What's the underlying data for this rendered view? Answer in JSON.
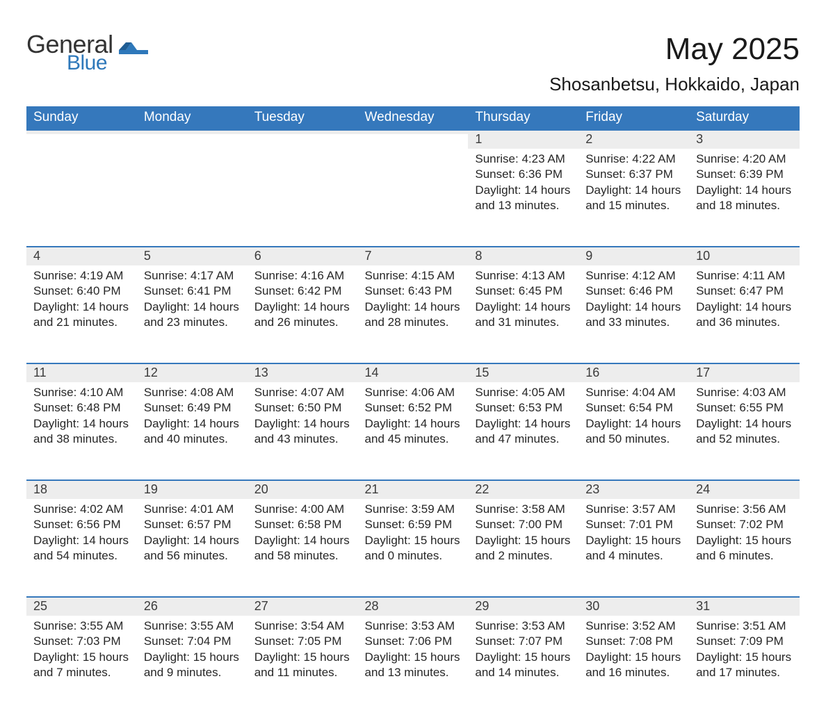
{
  "logo": {
    "general": "General",
    "blue": "Blue",
    "accent": "#2e78ba"
  },
  "title": "May 2025",
  "location": "Shosanbetsu, Hokkaido, Japan",
  "colors": {
    "header_bg": "#3578bc",
    "header_text": "#ffffff",
    "daynum_bg": "#ededed",
    "daynum_border": "#3578bc",
    "body_text": "#262626",
    "page_bg": "#ffffff"
  },
  "weekdays": [
    "Sunday",
    "Monday",
    "Tuesday",
    "Wednesday",
    "Thursday",
    "Friday",
    "Saturday"
  ],
  "weeks": [
    [
      null,
      null,
      null,
      null,
      {
        "n": "1",
        "sr": "4:23 AM",
        "ss": "6:36 PM",
        "dh": "14",
        "dm": "13"
      },
      {
        "n": "2",
        "sr": "4:22 AM",
        "ss": "6:37 PM",
        "dh": "14",
        "dm": "15"
      },
      {
        "n": "3",
        "sr": "4:20 AM",
        "ss": "6:39 PM",
        "dh": "14",
        "dm": "18"
      }
    ],
    [
      {
        "n": "4",
        "sr": "4:19 AM",
        "ss": "6:40 PM",
        "dh": "14",
        "dm": "21"
      },
      {
        "n": "5",
        "sr": "4:17 AM",
        "ss": "6:41 PM",
        "dh": "14",
        "dm": "23"
      },
      {
        "n": "6",
        "sr": "4:16 AM",
        "ss": "6:42 PM",
        "dh": "14",
        "dm": "26"
      },
      {
        "n": "7",
        "sr": "4:15 AM",
        "ss": "6:43 PM",
        "dh": "14",
        "dm": "28"
      },
      {
        "n": "8",
        "sr": "4:13 AM",
        "ss": "6:45 PM",
        "dh": "14",
        "dm": "31"
      },
      {
        "n": "9",
        "sr": "4:12 AM",
        "ss": "6:46 PM",
        "dh": "14",
        "dm": "33"
      },
      {
        "n": "10",
        "sr": "4:11 AM",
        "ss": "6:47 PM",
        "dh": "14",
        "dm": "36"
      }
    ],
    [
      {
        "n": "11",
        "sr": "4:10 AM",
        "ss": "6:48 PM",
        "dh": "14",
        "dm": "38"
      },
      {
        "n": "12",
        "sr": "4:08 AM",
        "ss": "6:49 PM",
        "dh": "14",
        "dm": "40"
      },
      {
        "n": "13",
        "sr": "4:07 AM",
        "ss": "6:50 PM",
        "dh": "14",
        "dm": "43"
      },
      {
        "n": "14",
        "sr": "4:06 AM",
        "ss": "6:52 PM",
        "dh": "14",
        "dm": "45"
      },
      {
        "n": "15",
        "sr": "4:05 AM",
        "ss": "6:53 PM",
        "dh": "14",
        "dm": "47"
      },
      {
        "n": "16",
        "sr": "4:04 AM",
        "ss": "6:54 PM",
        "dh": "14",
        "dm": "50"
      },
      {
        "n": "17",
        "sr": "4:03 AM",
        "ss": "6:55 PM",
        "dh": "14",
        "dm": "52"
      }
    ],
    [
      {
        "n": "18",
        "sr": "4:02 AM",
        "ss": "6:56 PM",
        "dh": "14",
        "dm": "54"
      },
      {
        "n": "19",
        "sr": "4:01 AM",
        "ss": "6:57 PM",
        "dh": "14",
        "dm": "56"
      },
      {
        "n": "20",
        "sr": "4:00 AM",
        "ss": "6:58 PM",
        "dh": "14",
        "dm": "58"
      },
      {
        "n": "21",
        "sr": "3:59 AM",
        "ss": "6:59 PM",
        "dh": "15",
        "dm": "0"
      },
      {
        "n": "22",
        "sr": "3:58 AM",
        "ss": "7:00 PM",
        "dh": "15",
        "dm": "2"
      },
      {
        "n": "23",
        "sr": "3:57 AM",
        "ss": "7:01 PM",
        "dh": "15",
        "dm": "4"
      },
      {
        "n": "24",
        "sr": "3:56 AM",
        "ss": "7:02 PM",
        "dh": "15",
        "dm": "6"
      }
    ],
    [
      {
        "n": "25",
        "sr": "3:55 AM",
        "ss": "7:03 PM",
        "dh": "15",
        "dm": "7"
      },
      {
        "n": "26",
        "sr": "3:55 AM",
        "ss": "7:04 PM",
        "dh": "15",
        "dm": "9"
      },
      {
        "n": "27",
        "sr": "3:54 AM",
        "ss": "7:05 PM",
        "dh": "15",
        "dm": "11"
      },
      {
        "n": "28",
        "sr": "3:53 AM",
        "ss": "7:06 PM",
        "dh": "15",
        "dm": "13"
      },
      {
        "n": "29",
        "sr": "3:53 AM",
        "ss": "7:07 PM",
        "dh": "15",
        "dm": "14"
      },
      {
        "n": "30",
        "sr": "3:52 AM",
        "ss": "7:08 PM",
        "dh": "15",
        "dm": "16"
      },
      {
        "n": "31",
        "sr": "3:51 AM",
        "ss": "7:09 PM",
        "dh": "15",
        "dm": "17"
      }
    ]
  ],
  "labels": {
    "sunrise": "Sunrise:",
    "sunset": "Sunset:",
    "daylight": "Daylight:",
    "hours": "hours",
    "and": "and",
    "minutes": "minutes."
  }
}
